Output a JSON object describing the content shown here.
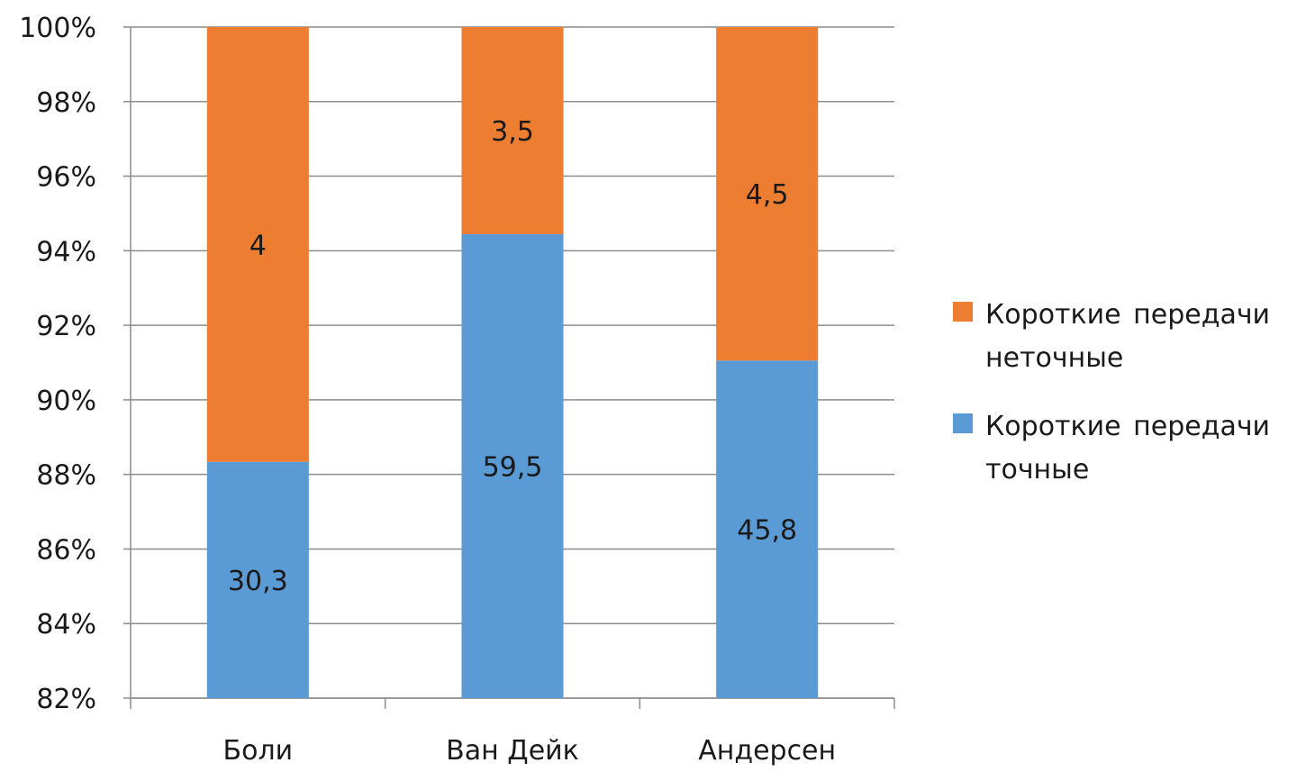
{
  "chart_data": {
    "type": "bar",
    "stacked": "percent",
    "title": "",
    "xlabel": "",
    "ylabel": "",
    "ylim": [
      82,
      100
    ],
    "yticks": [
      "82%",
      "84%",
      "86%",
      "88%",
      "90%",
      "92%",
      "94%",
      "96%",
      "98%",
      "100%"
    ],
    "grid": true,
    "legend_position": "right",
    "categories": [
      "Боли",
      "Ван Дейк",
      "Андерсен"
    ],
    "series": [
      {
        "name": "Короткие передачи точные",
        "values": [
          30.3,
          59.5,
          45.8
        ],
        "labels": [
          "30,3",
          "59,5",
          "45,8"
        ],
        "color": "#5b9bd5"
      },
      {
        "name": "Короткие передачи неточные",
        "values": [
          4,
          3.5,
          4.5
        ],
        "labels": [
          "4",
          "3,5",
          "4,5"
        ],
        "color": "#ed7d31"
      }
    ],
    "legend_order": [
      1,
      0
    ]
  }
}
